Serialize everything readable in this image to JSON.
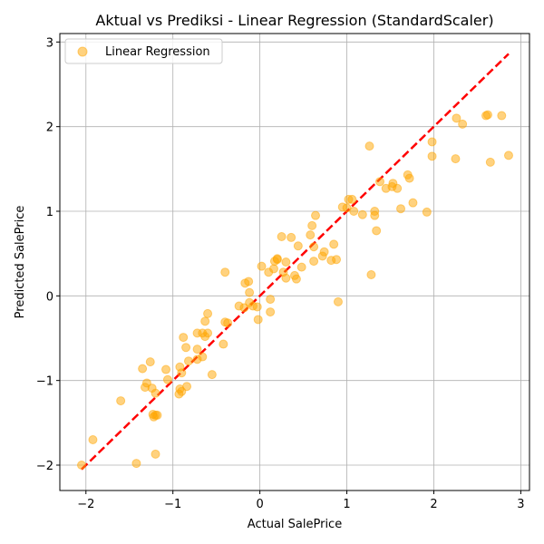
{
  "chart_data": {
    "type": "scatter",
    "title": "Aktual vs Prediksi - Linear Regression (StandardScaler)",
    "xlabel": "Actual SalePrice",
    "ylabel": "Predicted SalePrice",
    "xlim": [
      -2.3,
      3.1
    ],
    "ylim": [
      -2.3,
      3.1
    ],
    "xticks": [
      -2,
      -1,
      0,
      1,
      2,
      3
    ],
    "yticks": [
      -2,
      -1,
      0,
      1,
      2,
      3
    ],
    "xtick_labels": [
      "−2",
      "−1",
      "0",
      "1",
      "2",
      "3"
    ],
    "ytick_labels": [
      "−2",
      "−1",
      "0",
      "1",
      "2",
      "3"
    ],
    "grid": true,
    "legend_position": "top-left",
    "series": [
      {
        "name": "Linear Regression",
        "color": "#ffa500",
        "points": [
          [
            -2.05,
            -2.0
          ],
          [
            -1.92,
            -1.7
          ],
          [
            -1.6,
            -1.24
          ],
          [
            -1.42,
            -1.98
          ],
          [
            -1.2,
            -1.87
          ],
          [
            -1.35,
            -0.86
          ],
          [
            -1.32,
            -1.08
          ],
          [
            -1.3,
            -1.03
          ],
          [
            -1.26,
            -0.78
          ],
          [
            -1.24,
            -1.09
          ],
          [
            -1.23,
            -1.4
          ],
          [
            -1.22,
            -1.43
          ],
          [
            -1.2,
            -1.41
          ],
          [
            -1.18,
            -1.41
          ],
          [
            -1.2,
            -1.15
          ],
          [
            -1.08,
            -0.87
          ],
          [
            -1.06,
            -0.99
          ],
          [
            -0.93,
            -1.16
          ],
          [
            -0.92,
            -1.1
          ],
          [
            -0.9,
            -1.13
          ],
          [
            -0.92,
            -0.84
          ],
          [
            -0.9,
            -0.91
          ],
          [
            -0.88,
            -0.49
          ],
          [
            -0.85,
            -0.61
          ],
          [
            -0.82,
            -0.77
          ],
          [
            -0.84,
            -1.07
          ],
          [
            -0.72,
            -0.75
          ],
          [
            -0.72,
            -0.44
          ],
          [
            -0.72,
            -0.63
          ],
          [
            -0.66,
            -0.72
          ],
          [
            -0.66,
            -0.44
          ],
          [
            -0.63,
            -0.48
          ],
          [
            -0.63,
            -0.3
          ],
          [
            -0.6,
            -0.21
          ],
          [
            -0.6,
            -0.44
          ],
          [
            -0.55,
            -0.93
          ],
          [
            -0.42,
            -0.57
          ],
          [
            -0.4,
            -0.31
          ],
          [
            -0.37,
            -0.32
          ],
          [
            -0.4,
            0.28
          ],
          [
            -0.24,
            -0.12
          ],
          [
            -0.18,
            -0.14
          ],
          [
            -0.17,
            0.15
          ],
          [
            -0.13,
            0.17
          ],
          [
            -0.12,
            0.04
          ],
          [
            -0.12,
            -0.08
          ],
          [
            -0.08,
            -0.12
          ],
          [
            -0.03,
            -0.13
          ],
          [
            -0.02,
            -0.28
          ],
          [
            0.02,
            0.35
          ],
          [
            0.1,
            0.28
          ],
          [
            0.12,
            -0.19
          ],
          [
            0.12,
            -0.04
          ],
          [
            0.16,
            0.32
          ],
          [
            0.17,
            0.41
          ],
          [
            0.2,
            0.44
          ],
          [
            0.2,
            0.43
          ],
          [
            0.25,
            0.7
          ],
          [
            0.27,
            0.28
          ],
          [
            0.3,
            0.21
          ],
          [
            0.3,
            0.4
          ],
          [
            0.36,
            0.69
          ],
          [
            0.4,
            0.24
          ],
          [
            0.42,
            0.2
          ],
          [
            0.44,
            0.59
          ],
          [
            0.48,
            0.34
          ],
          [
            0.58,
            0.72
          ],
          [
            0.6,
            0.83
          ],
          [
            0.62,
            0.41
          ],
          [
            0.62,
            0.58
          ],
          [
            0.64,
            0.95
          ],
          [
            0.72,
            0.47
          ],
          [
            0.74,
            0.52
          ],
          [
            0.82,
            0.42
          ],
          [
            0.85,
            0.61
          ],
          [
            0.88,
            0.43
          ],
          [
            0.9,
            -0.07
          ],
          [
            0.95,
            1.05
          ],
          [
            1.0,
            1.04
          ],
          [
            1.02,
            1.14
          ],
          [
            1.06,
            1.14
          ],
          [
            1.08,
            1.0
          ],
          [
            1.18,
            0.96
          ],
          [
            1.26,
            1.77
          ],
          [
            1.28,
            0.25
          ],
          [
            1.32,
            0.95
          ],
          [
            1.32,
            1.0
          ],
          [
            1.34,
            0.77
          ],
          [
            1.38,
            1.35
          ],
          [
            1.45,
            1.27
          ],
          [
            1.52,
            1.29
          ],
          [
            1.53,
            1.33
          ],
          [
            1.58,
            1.27
          ],
          [
            1.62,
            1.03
          ],
          [
            1.7,
            1.43
          ],
          [
            1.72,
            1.39
          ],
          [
            1.76,
            1.1
          ],
          [
            1.92,
            0.99
          ],
          [
            1.98,
            1.65
          ],
          [
            1.98,
            1.82
          ],
          [
            2.25,
            1.62
          ],
          [
            2.26,
            2.1
          ],
          [
            2.33,
            2.03
          ],
          [
            2.6,
            2.13
          ],
          [
            2.62,
            2.14
          ],
          [
            2.65,
            1.58
          ],
          [
            2.78,
            2.13
          ],
          [
            2.86,
            1.66
          ]
        ]
      }
    ],
    "reference_line": {
      "style": "dashed",
      "color": "#ff0000",
      "x": [
        -2.05,
        2.86
      ],
      "y": [
        -2.05,
        2.86
      ]
    }
  }
}
